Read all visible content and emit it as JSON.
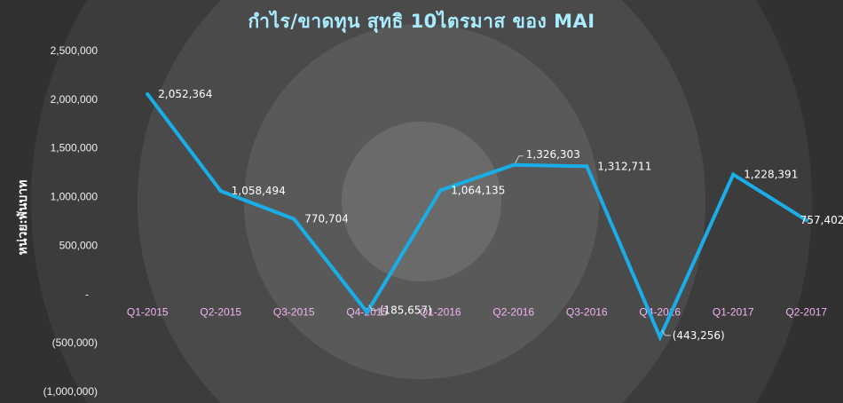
{
  "chart_data": {
    "type": "line",
    "title": "กำไร/ขาดทุน สุทธิ 10ไตรมาส ของ MAI",
    "ylabel": "หน่วย:พันบาท",
    "xlabel": "",
    "categories": [
      "Q1-2015",
      "Q2-2015",
      "Q3-2015",
      "Q4-2015",
      "Q1-2016",
      "Q2-2016",
      "Q3-2016",
      "Q4-2016",
      "Q1-2017",
      "Q2-2017"
    ],
    "series": [
      {
        "values": [
          2052364,
          1058494,
          770704,
          -185657,
          1064135,
          1326303,
          1312711,
          -443256,
          1228391,
          757402
        ],
        "data_labels": [
          "2,052,364",
          "1,058,494",
          "770,704",
          "(185,657)",
          "1,064,135",
          "1,326,303",
          "1,312,711",
          "(443,256)",
          "1,228,391",
          "757,402"
        ]
      }
    ],
    "ylim": [
      -1000000,
      2500000
    ],
    "yticks": [
      2500000,
      2000000,
      1500000,
      1000000,
      500000,
      0,
      -500000,
      -1000000
    ],
    "ytick_labels": [
      "2,500,000",
      "2,000,000",
      "1,500,000",
      "1,000,000",
      "500,000",
      "-",
      "(500,000)",
      "(1,000,000)"
    ],
    "grid": false,
    "legend": "none",
    "colors": {
      "line": "#1aaee8",
      "title": "#a9ecff",
      "x_tick": "#f3b3f3",
      "text": "#ffffff"
    }
  }
}
